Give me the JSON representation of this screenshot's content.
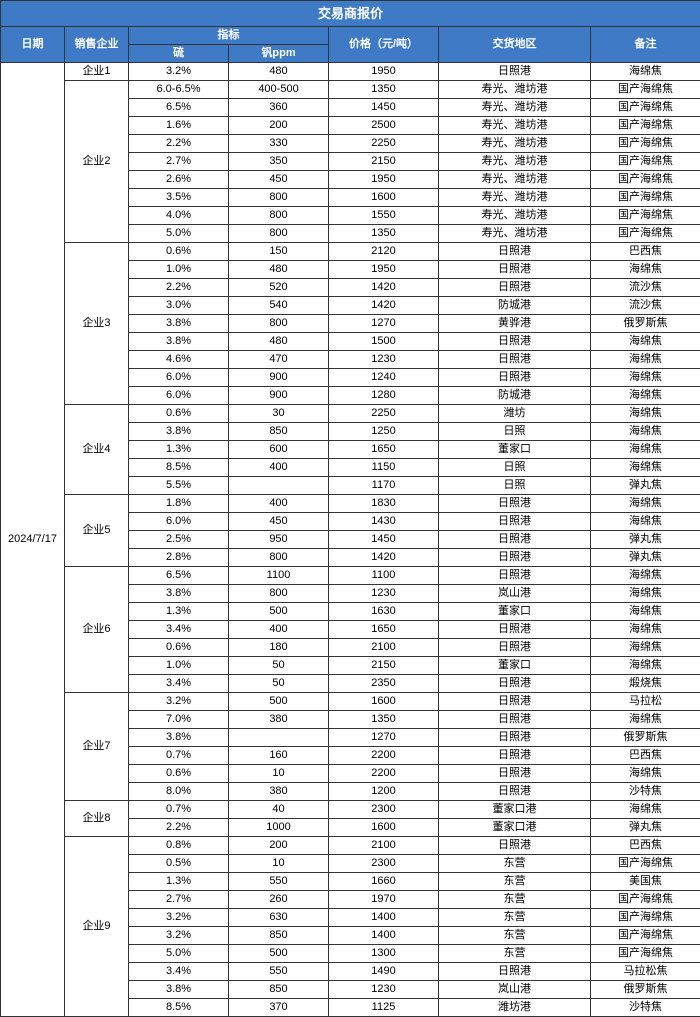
{
  "title": "交易商报价",
  "headers": {
    "date": "日期",
    "enterprise": "销售企业",
    "indicator": "指标",
    "sulfur": "硫",
    "vanadium": "钒ppm",
    "price": "价格（元/吨）",
    "location": "交货地区",
    "note": "备注"
  },
  "date": "2024/7/17",
  "colors": {
    "header_bg": "#3e7ac6",
    "header_fg": "#ffffff",
    "border": "#333333"
  },
  "groups": [
    {
      "enterprise": "企业1",
      "rows": [
        {
          "s": "3.2%",
          "v": "480",
          "p": "1950",
          "loc": "日照港",
          "note": "海绵焦"
        }
      ]
    },
    {
      "enterprise": "企业2",
      "rows": [
        {
          "s": "6.0-6.5%",
          "v": "400-500",
          "p": "1350",
          "loc": "寿光、潍坊港",
          "note": "国产海绵焦"
        },
        {
          "s": "6.5%",
          "v": "360",
          "p": "1450",
          "loc": "寿光、潍坊港",
          "note": "国产海绵焦"
        },
        {
          "s": "1.6%",
          "v": "200",
          "p": "2500",
          "loc": "寿光、潍坊港",
          "note": "国产海绵焦"
        },
        {
          "s": "2.2%",
          "v": "330",
          "p": "2250",
          "loc": "寿光、潍坊港",
          "note": "国产海绵焦"
        },
        {
          "s": "2.7%",
          "v": "350",
          "p": "2150",
          "loc": "寿光、潍坊港",
          "note": "国产海绵焦"
        },
        {
          "s": "2.6%",
          "v": "450",
          "p": "1950",
          "loc": "寿光、潍坊港",
          "note": "国产海绵焦"
        },
        {
          "s": "3.5%",
          "v": "800",
          "p": "1600",
          "loc": "寿光、潍坊港",
          "note": "国产海绵焦"
        },
        {
          "s": "4.0%",
          "v": "800",
          "p": "1550",
          "loc": "寿光、潍坊港",
          "note": "国产海绵焦"
        },
        {
          "s": "5.0%",
          "v": "800",
          "p": "1350",
          "loc": "寿光、潍坊港",
          "note": "国产海绵焦"
        }
      ]
    },
    {
      "enterprise": "企业3",
      "rows": [
        {
          "s": "0.6%",
          "v": "150",
          "p": "2120",
          "loc": "日照港",
          "note": "巴西焦"
        },
        {
          "s": "1.0%",
          "v": "480",
          "p": "1950",
          "loc": "日照港",
          "note": "海绵焦"
        },
        {
          "s": "2.2%",
          "v": "520",
          "p": "1420",
          "loc": "日照港",
          "note": "流沙焦"
        },
        {
          "s": "3.0%",
          "v": "540",
          "p": "1420",
          "loc": "防城港",
          "note": "流沙焦"
        },
        {
          "s": "3.8%",
          "v": "800",
          "p": "1270",
          "loc": "黄骅港",
          "note": "俄罗斯焦"
        },
        {
          "s": "3.8%",
          "v": "480",
          "p": "1500",
          "loc": "日照港",
          "note": "海绵焦"
        },
        {
          "s": "4.6%",
          "v": "470",
          "p": "1230",
          "loc": "日照港",
          "note": "海绵焦"
        },
        {
          "s": "6.0%",
          "v": "900",
          "p": "1240",
          "loc": "日照港",
          "note": "海绵焦"
        },
        {
          "s": "6.0%",
          "v": "900",
          "p": "1280",
          "loc": "防城港",
          "note": "海绵焦"
        }
      ]
    },
    {
      "enterprise": "企业4",
      "rows": [
        {
          "s": "0.6%",
          "v": "30",
          "p": "2250",
          "loc": "潍坊",
          "note": "海绵焦"
        },
        {
          "s": "3.8%",
          "v": "850",
          "p": "1250",
          "loc": "日照",
          "note": "海绵焦"
        },
        {
          "s": "1.3%",
          "v": "600",
          "p": "1650",
          "loc": "董家口",
          "note": "海绵焦"
        },
        {
          "s": "8.5%",
          "v": "400",
          "p": "1150",
          "loc": "日照",
          "note": "海绵焦"
        },
        {
          "s": "5.5%",
          "v": "",
          "p": "1170",
          "loc": "日照",
          "note": "弹丸焦"
        }
      ]
    },
    {
      "enterprise": "企业5",
      "rows": [
        {
          "s": "1.8%",
          "v": "400",
          "p": "1830",
          "loc": "日照港",
          "note": "海绵焦"
        },
        {
          "s": "6.0%",
          "v": "450",
          "p": "1430",
          "loc": "日照港",
          "note": "海绵焦"
        },
        {
          "s": "2.5%",
          "v": "950",
          "p": "1450",
          "loc": "日照港",
          "note": "弹丸焦"
        },
        {
          "s": "2.8%",
          "v": "800",
          "p": "1420",
          "loc": "日照港",
          "note": "弹丸焦"
        }
      ]
    },
    {
      "enterprise": "企业6",
      "rows": [
        {
          "s": "6.5%",
          "v": "1100",
          "p": "1100",
          "loc": "日照港",
          "note": "海绵焦"
        },
        {
          "s": "3.8%",
          "v": "800",
          "p": "1230",
          "loc": "岚山港",
          "note": "海绵焦"
        },
        {
          "s": "1.3%",
          "v": "500",
          "p": "1630",
          "loc": "董家口",
          "note": "海绵焦"
        },
        {
          "s": "3.4%",
          "v": "400",
          "p": "1650",
          "loc": "日照港",
          "note": "海绵焦"
        },
        {
          "s": "0.6%",
          "v": "180",
          "p": "2100",
          "loc": "日照港",
          "note": "海绵焦"
        },
        {
          "s": "1.0%",
          "v": "50",
          "p": "2150",
          "loc": "董家口",
          "note": "海绵焦"
        },
        {
          "s": "3.4%",
          "v": "50",
          "p": "2350",
          "loc": "日照港",
          "note": "煅烧焦"
        }
      ]
    },
    {
      "enterprise": "企业7",
      "rows": [
        {
          "s": "3.2%",
          "v": "500",
          "p": "1600",
          "loc": "日照港",
          "note": "马拉松"
        },
        {
          "s": "7.0%",
          "v": "380",
          "p": "1350",
          "loc": "日照港",
          "note": "海绵焦"
        },
        {
          "s": "3.8%",
          "v": "",
          "p": "1270",
          "loc": "日照港",
          "note": "俄罗斯焦"
        },
        {
          "s": "0.7%",
          "v": "160",
          "p": "2200",
          "loc": "日照港",
          "note": "巴西焦"
        },
        {
          "s": "0.6%",
          "v": "10",
          "p": "2200",
          "loc": "日照港",
          "note": "海绵焦"
        },
        {
          "s": "8.0%",
          "v": "380",
          "p": "1200",
          "loc": "日照港",
          "note": "沙特焦"
        }
      ]
    },
    {
      "enterprise": "企业8",
      "rows": [
        {
          "s": "0.7%",
          "v": "40",
          "p": "2300",
          "loc": "董家口港",
          "note": "海绵焦"
        },
        {
          "s": "2.2%",
          "v": "1000",
          "p": "1600",
          "loc": "董家口港",
          "note": "弹丸焦"
        }
      ]
    },
    {
      "enterprise": "企业9",
      "rows": [
        {
          "s": "0.8%",
          "v": "200",
          "p": "2100",
          "loc": "日照港",
          "note": "巴西焦"
        },
        {
          "s": "0.5%",
          "v": "10",
          "p": "2300",
          "loc": "东营",
          "note": "国产海绵焦"
        },
        {
          "s": "1.3%",
          "v": "550",
          "p": "1660",
          "loc": "东营",
          "note": "美国焦"
        },
        {
          "s": "2.7%",
          "v": "260",
          "p": "1970",
          "loc": "东营",
          "note": "国产海绵焦"
        },
        {
          "s": "3.2%",
          "v": "630",
          "p": "1400",
          "loc": "东营",
          "note": "国产海绵焦"
        },
        {
          "s": "3.2%",
          "v": "850",
          "p": "1400",
          "loc": "东营",
          "note": "国产海绵焦"
        },
        {
          "s": "5.0%",
          "v": "500",
          "p": "1300",
          "loc": "东营",
          "note": "国产海绵焦"
        },
        {
          "s": "3.4%",
          "v": "550",
          "p": "1490",
          "loc": "日照港",
          "note": "马拉松焦"
        },
        {
          "s": "3.8%",
          "v": "850",
          "p": "1230",
          "loc": "岚山港",
          "note": "俄罗斯焦"
        },
        {
          "s": "8.5%",
          "v": "370",
          "p": "1125",
          "loc": "潍坊港",
          "note": "沙特焦"
        }
      ]
    }
  ]
}
